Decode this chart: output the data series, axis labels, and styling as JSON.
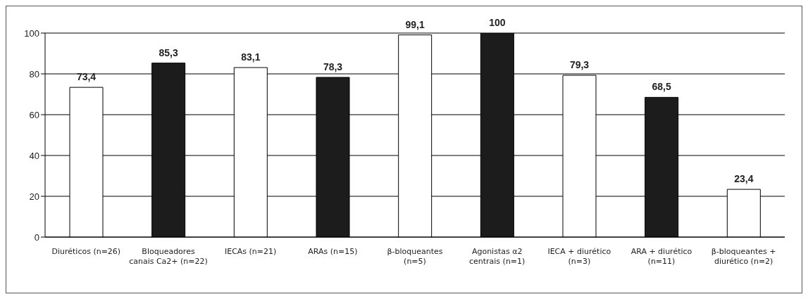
{
  "chart_data": {
    "type": "bar",
    "categories": [
      "Diuréticos (n=26)",
      "Bloqueadores canais Ca2+ (n=22)",
      "IECAs (n=21)",
      "ARAs (n=15)",
      "β-bloqueantes (n=5)",
      "Agonistas α2 centrais (n=1)",
      "IECA + diurético (n=3)",
      "ARA + diurético (n=11)",
      "β-bloqueantes + diurético (n=2)"
    ],
    "values": [
      73.4,
      85.3,
      83.1,
      78.3,
      99.1,
      100,
      79.3,
      68.5,
      23.4
    ],
    "value_labels": [
      "73,4",
      "85,3",
      "83,1",
      "78,3",
      "99,1",
      "100",
      "79,3",
      "68,5",
      "23,4"
    ],
    "colors": [
      "#ffffff",
      "#1c1c1c",
      "#ffffff",
      "#1c1c1c",
      "#ffffff",
      "#1c1c1c",
      "#ffffff",
      "#1c1c1c",
      "#ffffff"
    ],
    "ylim": [
      0,
      100
    ],
    "yticks": [
      0,
      20,
      40,
      60,
      80,
      100
    ],
    "grid": "y"
  }
}
